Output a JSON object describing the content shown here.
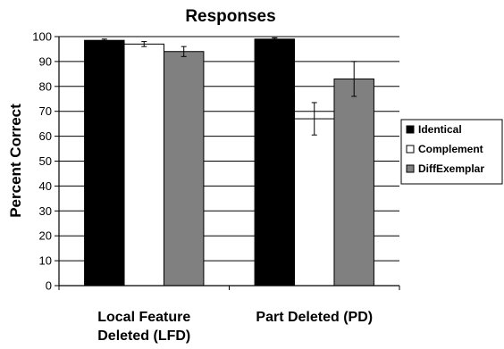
{
  "chart_data": {
    "type": "bar",
    "title": "Responses",
    "ylabel": "Percent Correct",
    "xlabel": "",
    "ylim": [
      0,
      100
    ],
    "yticks": [
      0,
      10,
      20,
      30,
      40,
      50,
      60,
      70,
      80,
      90,
      100
    ],
    "categories": [
      "Local Feature Deleted (LFD)",
      "Part Deleted (PD)"
    ],
    "category_lines": [
      [
        "Local Feature",
        "Deleted (LFD)"
      ],
      [
        "Part Deleted (PD)"
      ]
    ],
    "series": [
      {
        "name": "Identical",
        "values": [
          98.5,
          99.0
        ],
        "errors": [
          0.5,
          0.5
        ],
        "color": "#000000"
      },
      {
        "name": "Complement",
        "values": [
          97.0,
          67.0
        ],
        "errors": [
          1.0,
          6.5
        ],
        "color": "#ffffff"
      },
      {
        "name": "DiffExemplar",
        "values": [
          94.0,
          83.0
        ],
        "errors": [
          2.0,
          7.0
        ],
        "color": "#808080"
      }
    ],
    "legend_position": "right",
    "grid": true
  }
}
